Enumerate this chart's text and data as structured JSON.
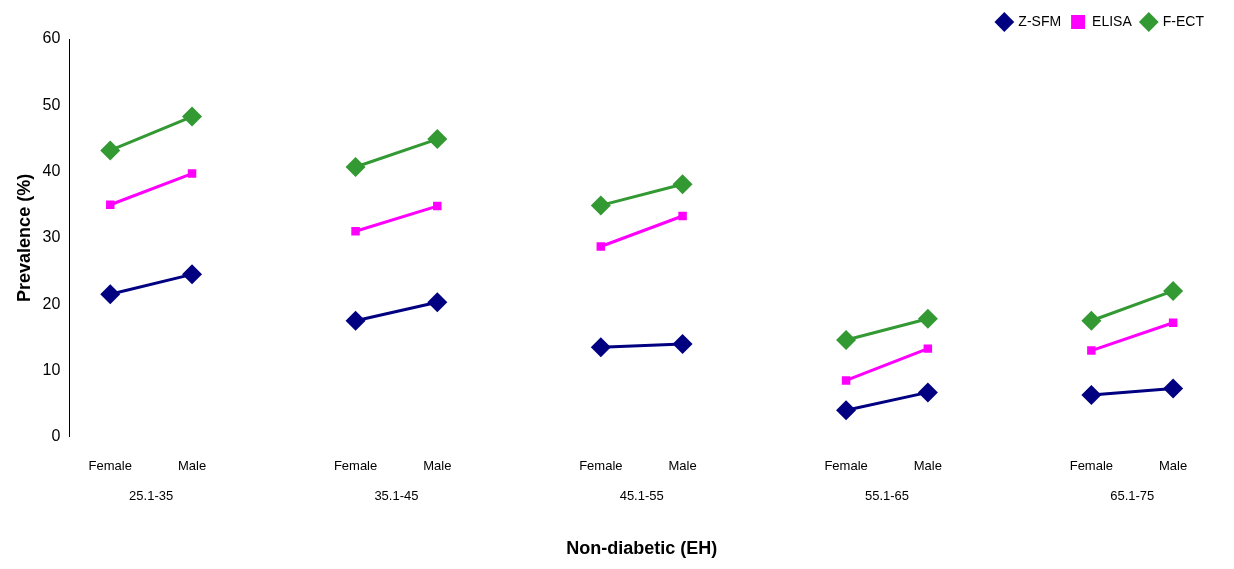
{
  "chart_data": {
    "type": "line",
    "ylabel": "Prevalence (%)",
    "xlabel": "Non-diabetic (EH)",
    "categories": [
      "Female",
      "Male",
      null,
      "Female",
      "Male",
      null,
      "Female",
      "Male",
      null,
      "Female",
      "Male",
      null,
      "Female",
      "Male"
    ],
    "series": [
      {
        "name": "Z-SFM",
        "color": "#000080",
        "marker": "diamond",
        "values": [
          21.5,
          24.5,
          null,
          17.5,
          20.3,
          null,
          13.5,
          14,
          null,
          4,
          6.7,
          null,
          6.3,
          7.3
        ]
      },
      {
        "name": "ELISA",
        "color": "#ff00ff",
        "marker": "square",
        "values": [
          35,
          39.7,
          null,
          31,
          34.8,
          null,
          28.7,
          33.3,
          null,
          8.5,
          13.3,
          null,
          13,
          17.2
        ]
      },
      {
        "name": "F-ECT",
        "color": "#339933",
        "marker": "diamond",
        "values": [
          43.2,
          48.3,
          null,
          40.7,
          44.9,
          null,
          34.9,
          38.1,
          null,
          14.6,
          17.8,
          null,
          17.5,
          22
        ]
      }
    ],
    "annotations": [
      "25.1-35",
      "35.1-45",
      "45.1-55",
      "55.1-65",
      "65.1-75"
    ],
    "ylim": [
      0,
      60
    ],
    "yticks": [
      0,
      10,
      20,
      30,
      40,
      50,
      60
    ],
    "grid": false,
    "legend": "top right",
    "line_style": "solid"
  }
}
